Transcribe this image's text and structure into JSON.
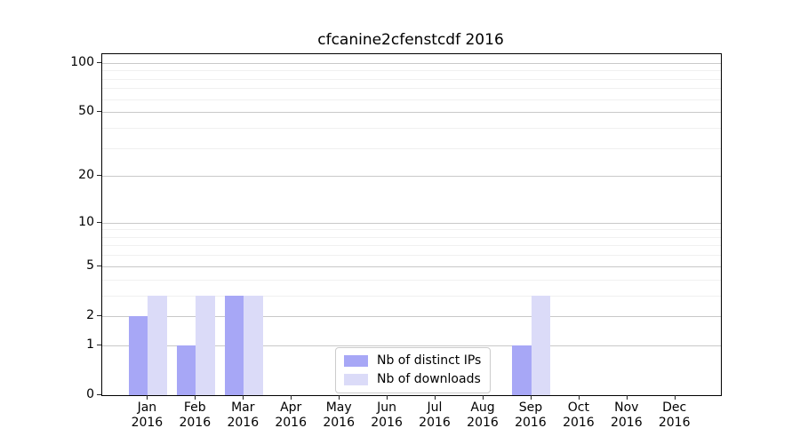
{
  "title": "cfcanine2cfenstcdf 2016",
  "chart_data": {
    "type": "bar",
    "title": "cfcanine2cfenstcdf 2016",
    "x_months": [
      "Jan",
      "Feb",
      "Mar",
      "Apr",
      "May",
      "Jun",
      "Jul",
      "Aug",
      "Sep",
      "Oct",
      "Nov",
      "Dec"
    ],
    "x_year": "2016",
    "series": [
      {
        "name": "Nb of distinct IPs",
        "color": "#a7a7f6",
        "values": [
          2,
          1,
          3,
          0,
          0,
          0,
          0,
          0,
          1,
          0,
          0,
          0
        ]
      },
      {
        "name": "Nb of downloads",
        "color": "#dbdbf8",
        "values": [
          3,
          3,
          3,
          0,
          0,
          0,
          0,
          0,
          3,
          0,
          0,
          0
        ]
      }
    ],
    "y_scale": "log10(1+v)",
    "yticks": [
      0,
      1,
      2,
      5,
      10,
      20,
      50,
      100
    ],
    "minor_yticks": [
      3,
      4,
      6,
      7,
      8,
      9,
      30,
      40,
      60,
      70,
      80,
      90
    ],
    "ylim": [
      0,
      113
    ],
    "grid": "both",
    "legend_position": "lower center"
  }
}
